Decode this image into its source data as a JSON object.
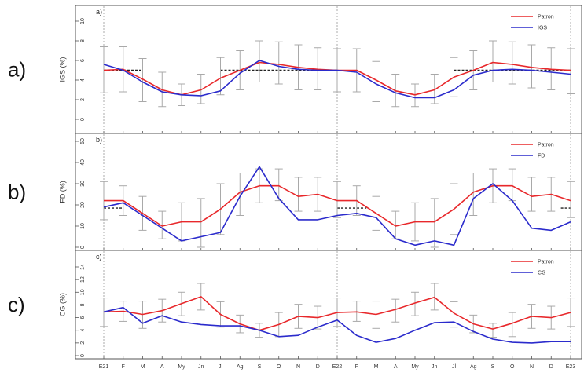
{
  "colors": {
    "patron": "#e8282b",
    "series": "#2b2bcc",
    "errorbar": "#a9a9a9",
    "threshold": "#222222",
    "frame": "#555555"
  },
  "months": [
    "E21",
    "F",
    "M",
    "A",
    "My",
    "Jn",
    "Jl",
    "Ag",
    "S",
    "O",
    "N",
    "D",
    "E22",
    "F",
    "M",
    "A",
    "My",
    "Jn",
    "Jl",
    "Ag",
    "S",
    "O",
    "N",
    "D",
    "E23"
  ],
  "chart_data": [
    {
      "type": "line",
      "panel_label": "a)",
      "panel_tag": "a)",
      "ylabel": "IGS (%)",
      "ylim": [
        0,
        10
      ],
      "yticks": [
        0,
        2,
        4,
        6,
        8,
        10
      ],
      "threshold": 5,
      "threshold_segments": [
        [
          0,
          2
        ],
        [
          6,
          12
        ],
        [
          18,
          24
        ]
      ],
      "legend_position": "top-right",
      "series": [
        {
          "name": "Patron",
          "values": [
            5.0,
            5.1,
            4.1,
            3.0,
            2.5,
            3.0,
            4.2,
            5.0,
            5.8,
            5.6,
            5.3,
            5.1,
            5.0,
            5.0,
            4.0,
            2.9,
            2.5,
            3.0,
            4.3,
            5.0,
            5.8,
            5.6,
            5.3,
            5.1,
            5.0
          ]
        },
        {
          "name": "IGS",
          "values": [
            5.6,
            5.0,
            3.8,
            2.8,
            2.5,
            2.4,
            2.9,
            4.7,
            6.0,
            5.4,
            5.1,
            5.0,
            5.0,
            4.8,
            3.6,
            2.7,
            2.2,
            2.2,
            3.0,
            4.5,
            5.0,
            5.1,
            5.0,
            4.8,
            4.6
          ]
        }
      ],
      "error_bars": [
        [
          2.7,
          7.4
        ],
        [
          2.8,
          7.4
        ],
        [
          1.8,
          6.2
        ],
        [
          1.3,
          4.8
        ],
        [
          1.4,
          3.6
        ],
        [
          1.6,
          4.6
        ],
        [
          2.5,
          6.3
        ],
        [
          3.0,
          7.0
        ],
        [
          3.8,
          8.0
        ],
        [
          3.6,
          7.9
        ],
        [
          3.0,
          7.6
        ],
        [
          3.0,
          7.3
        ],
        [
          2.8,
          7.2
        ],
        [
          2.8,
          7.2
        ],
        [
          1.8,
          5.9
        ],
        [
          1.3,
          4.6
        ],
        [
          1.3,
          3.6
        ],
        [
          1.6,
          4.6
        ],
        [
          2.3,
          6.3
        ],
        [
          3.0,
          7.0
        ],
        [
          3.8,
          8.0
        ],
        [
          3.6,
          7.9
        ],
        [
          3.2,
          7.6
        ],
        [
          3.0,
          7.3
        ],
        [
          2.6,
          7.2
        ]
      ]
    },
    {
      "type": "line",
      "panel_label": "b)",
      "panel_tag": "b)",
      "ylabel": "FD (%)",
      "ylim": [
        0,
        50
      ],
      "yticks": [
        0,
        10,
        20,
        30,
        40,
        50
      ],
      "threshold": 18.5,
      "threshold_segments": [
        [
          0,
          1
        ],
        [
          12,
          13.5
        ],
        [
          23.5,
          24
        ]
      ],
      "legend_position": "top-right",
      "series": [
        {
          "name": "Patron",
          "values": [
            22,
            22,
            16,
            10,
            12,
            12,
            18,
            26,
            29,
            29,
            24,
            25,
            22,
            22,
            16,
            10,
            12,
            12,
            18,
            26,
            29,
            29,
            24,
            25,
            22
          ]
        },
        {
          "name": "FD",
          "values": [
            19,
            21,
            15,
            9,
            3,
            5,
            7,
            24,
            38,
            23,
            13,
            13,
            15,
            16,
            14,
            4,
            1,
            3,
            1,
            23,
            30,
            22,
            9,
            8,
            12
          ]
        }
      ],
      "error_bars": [
        [
          13,
          31
        ],
        [
          15,
          29
        ],
        [
          8,
          24
        ],
        [
          4,
          17
        ],
        [
          3,
          21
        ],
        [
          0,
          23
        ],
        [
          6,
          30
        ],
        [
          15,
          35
        ],
        [
          21,
          37
        ],
        [
          22,
          37
        ],
        [
          17,
          33
        ],
        [
          17,
          33
        ],
        [
          14,
          31
        ],
        [
          15,
          29
        ],
        [
          8,
          24
        ],
        [
          4,
          17
        ],
        [
          3,
          21
        ],
        [
          0,
          23
        ],
        [
          6,
          30
        ],
        [
          15,
          35
        ],
        [
          21,
          37
        ],
        [
          22,
          37
        ],
        [
          17,
          33
        ],
        [
          17,
          33
        ],
        [
          14,
          31
        ]
      ]
    },
    {
      "type": "line",
      "panel_label": "c)",
      "panel_tag": "c)",
      "ylabel": "CG (%)",
      "ylim": [
        0,
        14
      ],
      "yticks": [
        0,
        2,
        4,
        6,
        8,
        10,
        12,
        14
      ],
      "legend_position": "top-right",
      "series": [
        {
          "name": "Patron",
          "values": [
            6.9,
            7.0,
            6.5,
            7.1,
            8.2,
            9.3,
            6.5,
            5.0,
            4.0,
            4.9,
            6.2,
            6.0,
            6.8,
            6.9,
            6.5,
            7.3,
            8.3,
            9.2,
            6.7,
            5.0,
            4.2,
            5.1,
            6.2,
            6.0,
            6.8
          ]
        },
        {
          "name": "CG",
          "values": [
            6.9,
            7.6,
            5.1,
            6.3,
            5.3,
            4.9,
            4.7,
            4.7,
            4.0,
            3.0,
            3.2,
            4.5,
            5.6,
            3.2,
            2.1,
            2.7,
            4.0,
            5.2,
            5.3,
            3.8,
            2.6,
            2.1,
            2.0,
            2.2,
            2.2
          ]
        }
      ],
      "error_bars": [
        [
          4.6,
          9.1
        ],
        [
          5.4,
          8.6
        ],
        [
          4.3,
          8.6
        ],
        [
          5.3,
          8.9
        ],
        [
          6.3,
          10.0
        ],
        [
          7.2,
          11.4
        ],
        [
          4.5,
          8.5
        ],
        [
          3.6,
          6.4
        ],
        [
          2.9,
          5.1
        ],
        [
          3.0,
          6.8
        ],
        [
          4.3,
          8.1
        ],
        [
          4.2,
          7.8
        ],
        [
          4.6,
          9.1
        ],
        [
          5.4,
          8.6
        ],
        [
          4.3,
          8.6
        ],
        [
          5.3,
          8.9
        ],
        [
          6.3,
          10.0
        ],
        [
          7.2,
          11.4
        ],
        [
          4.5,
          8.5
        ],
        [
          3.6,
          6.4
        ],
        [
          2.9,
          5.1
        ],
        [
          3.0,
          6.8
        ],
        [
          4.3,
          8.1
        ],
        [
          4.2,
          7.8
        ],
        [
          4.6,
          9.1
        ]
      ]
    }
  ]
}
